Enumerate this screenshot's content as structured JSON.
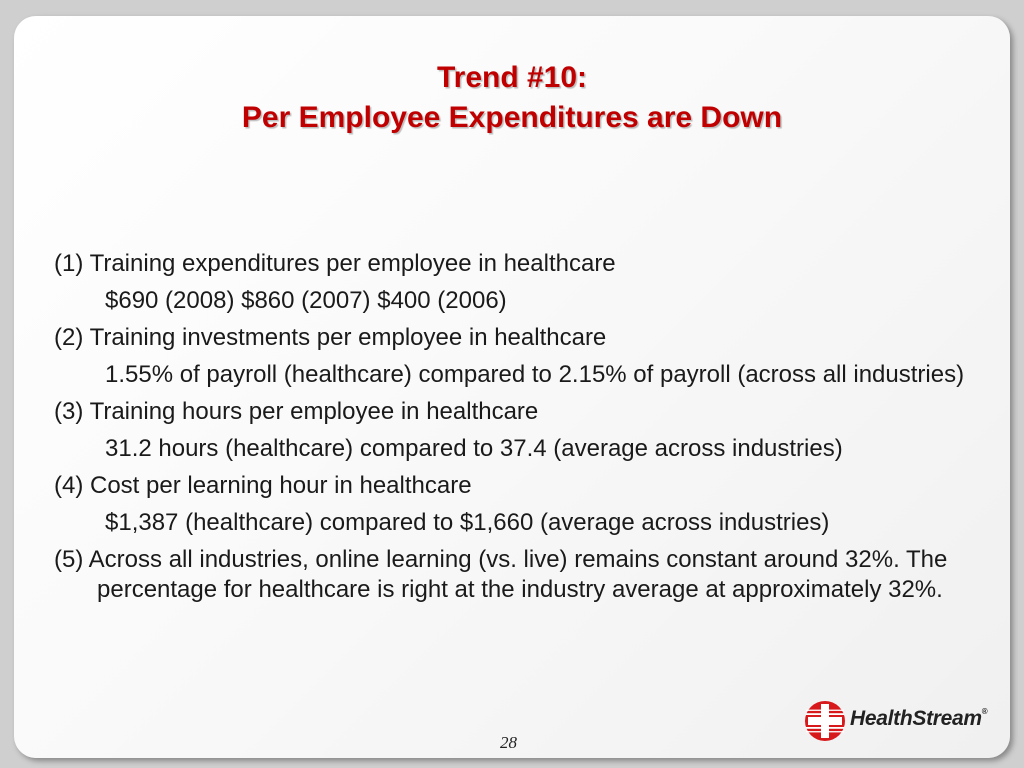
{
  "slide": {
    "title_line1": "Trend #10:",
    "title_line2": "Per Employee Expenditures are Down",
    "items": [
      {
        "heading": "(1) Training expenditures per employee in healthcare",
        "detail_parts": [
          "$690 (2008)",
          "$860 (2007)",
          "$400 (2006)"
        ]
      },
      {
        "heading": "(2) Training investments per employee in healthcare",
        "detail": "1.55% of payroll (healthcare) compared to 2.15% of payroll (across all industries)"
      },
      {
        "heading": "(3) Training hours per employee in healthcare",
        "detail": "31.2 hours (healthcare) compared to 37.4 (average across industries)"
      },
      {
        "heading": "(4) Cost per learning hour in healthcare",
        "detail": "$1,387 (healthcare) compared to $1,660 (average across industries)"
      },
      {
        "heading": "(5) Across all industries, online learning (vs. live) remains constant around 32%. The percentage for healthcare is right at the industry average at approximately 32%."
      }
    ],
    "page_number": "28"
  },
  "logo": {
    "text": "HealthStream",
    "mark": "®",
    "color": "#d7191c"
  },
  "colors": {
    "title": "#c00000",
    "body": "#1a1a1a",
    "background": "#cfcfcf"
  }
}
